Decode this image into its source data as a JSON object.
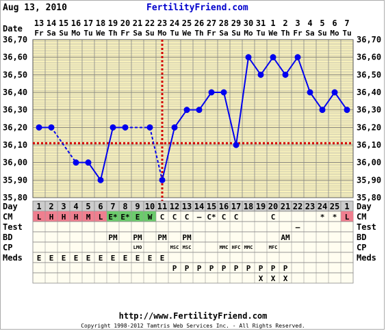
{
  "header": {
    "date": "Aug 13, 2010",
    "site": "FertilityFriend.com"
  },
  "footer": {
    "url": "http://www.FertilityFriend.com",
    "copyright": "Copyright 1998-2012 Tamtris Web Services Inc. - All Rights Reserved."
  },
  "chart_data": {
    "type": "line",
    "dates": [
      "13",
      "14",
      "15",
      "16",
      "17",
      "18",
      "19",
      "20",
      "21",
      "22",
      "23",
      "24",
      "25",
      "26",
      "27",
      "28",
      "29",
      "30",
      "31",
      "1",
      "2",
      "3",
      "4",
      "5",
      "6",
      "7"
    ],
    "weekdays": [
      "Fr",
      "Sa",
      "Su",
      "Mo",
      "Tu",
      "We",
      "Th",
      "Fr",
      "Sa",
      "Su",
      "Mo",
      "Tu",
      "We",
      "Th",
      "Fr",
      "Sa",
      "Su",
      "Mo",
      "Tu",
      "We",
      "Th",
      "Fr",
      "Sa",
      "Su",
      "Mo",
      "Tu"
    ],
    "cycle_days": [
      "1",
      "2",
      "3",
      "4",
      "5",
      "6",
      "7",
      "8",
      "9",
      "10",
      "11",
      "12",
      "13",
      "14",
      "15",
      "16",
      "17",
      "18",
      "19",
      "20",
      "21",
      "22",
      "23",
      "24",
      "25",
      "1"
    ],
    "date_label": "Date",
    "day_label": "Day",
    "temperatures": [
      36.2,
      36.2,
      null,
      36.0,
      36.0,
      35.9,
      36.2,
      36.2,
      null,
      36.2,
      35.9,
      36.2,
      36.3,
      36.3,
      36.4,
      36.4,
      36.1,
      36.6,
      36.5,
      36.6,
      36.5,
      36.6,
      36.4,
      36.3,
      36.4,
      36.3
    ],
    "dashed_segments": [
      [
        1,
        3
      ],
      [
        7,
        9
      ],
      [
        9,
        10
      ]
    ],
    "ylim": [
      35.8,
      36.7
    ],
    "yticks": [
      "36,70",
      "36,60",
      "36,50",
      "36,40",
      "36,30",
      "36,20",
      "36,10",
      "36,00",
      "35,90",
      "35,80"
    ],
    "coverline": 36.11,
    "ovulation_day_index": 10,
    "colors": {
      "plot_bg": "#fbf4bd",
      "grid": "#a6a6a6",
      "line": "#0000ee",
      "coverline": "#d40000",
      "day_row_bg": "#cccccc",
      "cm_red": "#ef7f8f",
      "cm_green": "#6ccb6c"
    },
    "rows": [
      {
        "label": "CM",
        "cells": [
          "L",
          "H",
          "H",
          "H",
          "M",
          "L",
          "E*",
          "E*",
          "E",
          "W",
          "C",
          "C",
          "C",
          "–",
          "C*",
          "C",
          "C",
          "",
          "",
          "C",
          "",
          "",
          "",
          "*",
          "*",
          "L"
        ],
        "colors": [
          "red",
          "red",
          "red",
          "red",
          "red",
          "red",
          "green",
          "green",
          "green",
          "green",
          "",
          "",
          "",
          "",
          "",
          "",
          "",
          "",
          "",
          "",
          "",
          "",
          "",
          "",
          "",
          "red"
        ]
      },
      {
        "label": "Test",
        "cells": [
          "",
          "",
          "",
          "",
          "",
          "",
          "",
          "",
          "",
          "",
          "",
          "",
          "",
          "",
          "",
          "",
          "",
          "",
          "",
          "",
          "",
          "–",
          "",
          "",
          "",
          ""
        ]
      },
      {
        "label": "BD",
        "cells": [
          "",
          "",
          "",
          "",
          "",
          "",
          "PM",
          "",
          "PM",
          "",
          "PM",
          "",
          "PM",
          "",
          "",
          "",
          "",
          "",
          "",
          "",
          "AM",
          "",
          "",
          "",
          "",
          ""
        ]
      },
      {
        "label": "CP",
        "cells": [
          "",
          "",
          "",
          "",
          "",
          "",
          "",
          "",
          "LMO",
          "",
          "",
          "MSC",
          "MSC",
          "",
          "",
          "MMC",
          "HFC",
          "MMC",
          "",
          "MFC",
          "",
          "",
          "",
          "",
          "",
          ""
        ]
      },
      {
        "label": "Meds",
        "cells": [
          "E",
          "E",
          "E",
          "E",
          "E",
          "E",
          "E",
          "E",
          "E",
          "E",
          "E",
          "",
          "",
          "",
          "",
          "",
          "",
          "",
          "",
          "",
          "",
          "",
          "",
          "",
          "",
          ""
        ]
      },
      {
        "label": "",
        "cells": [
          "",
          "",
          "",
          "",
          "",
          "",
          "",
          "",
          "",
          "",
          "",
          "P",
          "P",
          "P",
          "P",
          "P",
          "P",
          "P",
          "P",
          "P",
          "P",
          "",
          "",
          "",
          "",
          ""
        ]
      },
      {
        "label": "",
        "cells": [
          "",
          "",
          "",
          "",
          "",
          "",
          "",
          "",
          "",
          "",
          "",
          "",
          "",
          "",
          "",
          "",
          "",
          "",
          "X",
          "X",
          "X",
          "",
          "",
          "",
          "",
          ""
        ]
      }
    ]
  }
}
